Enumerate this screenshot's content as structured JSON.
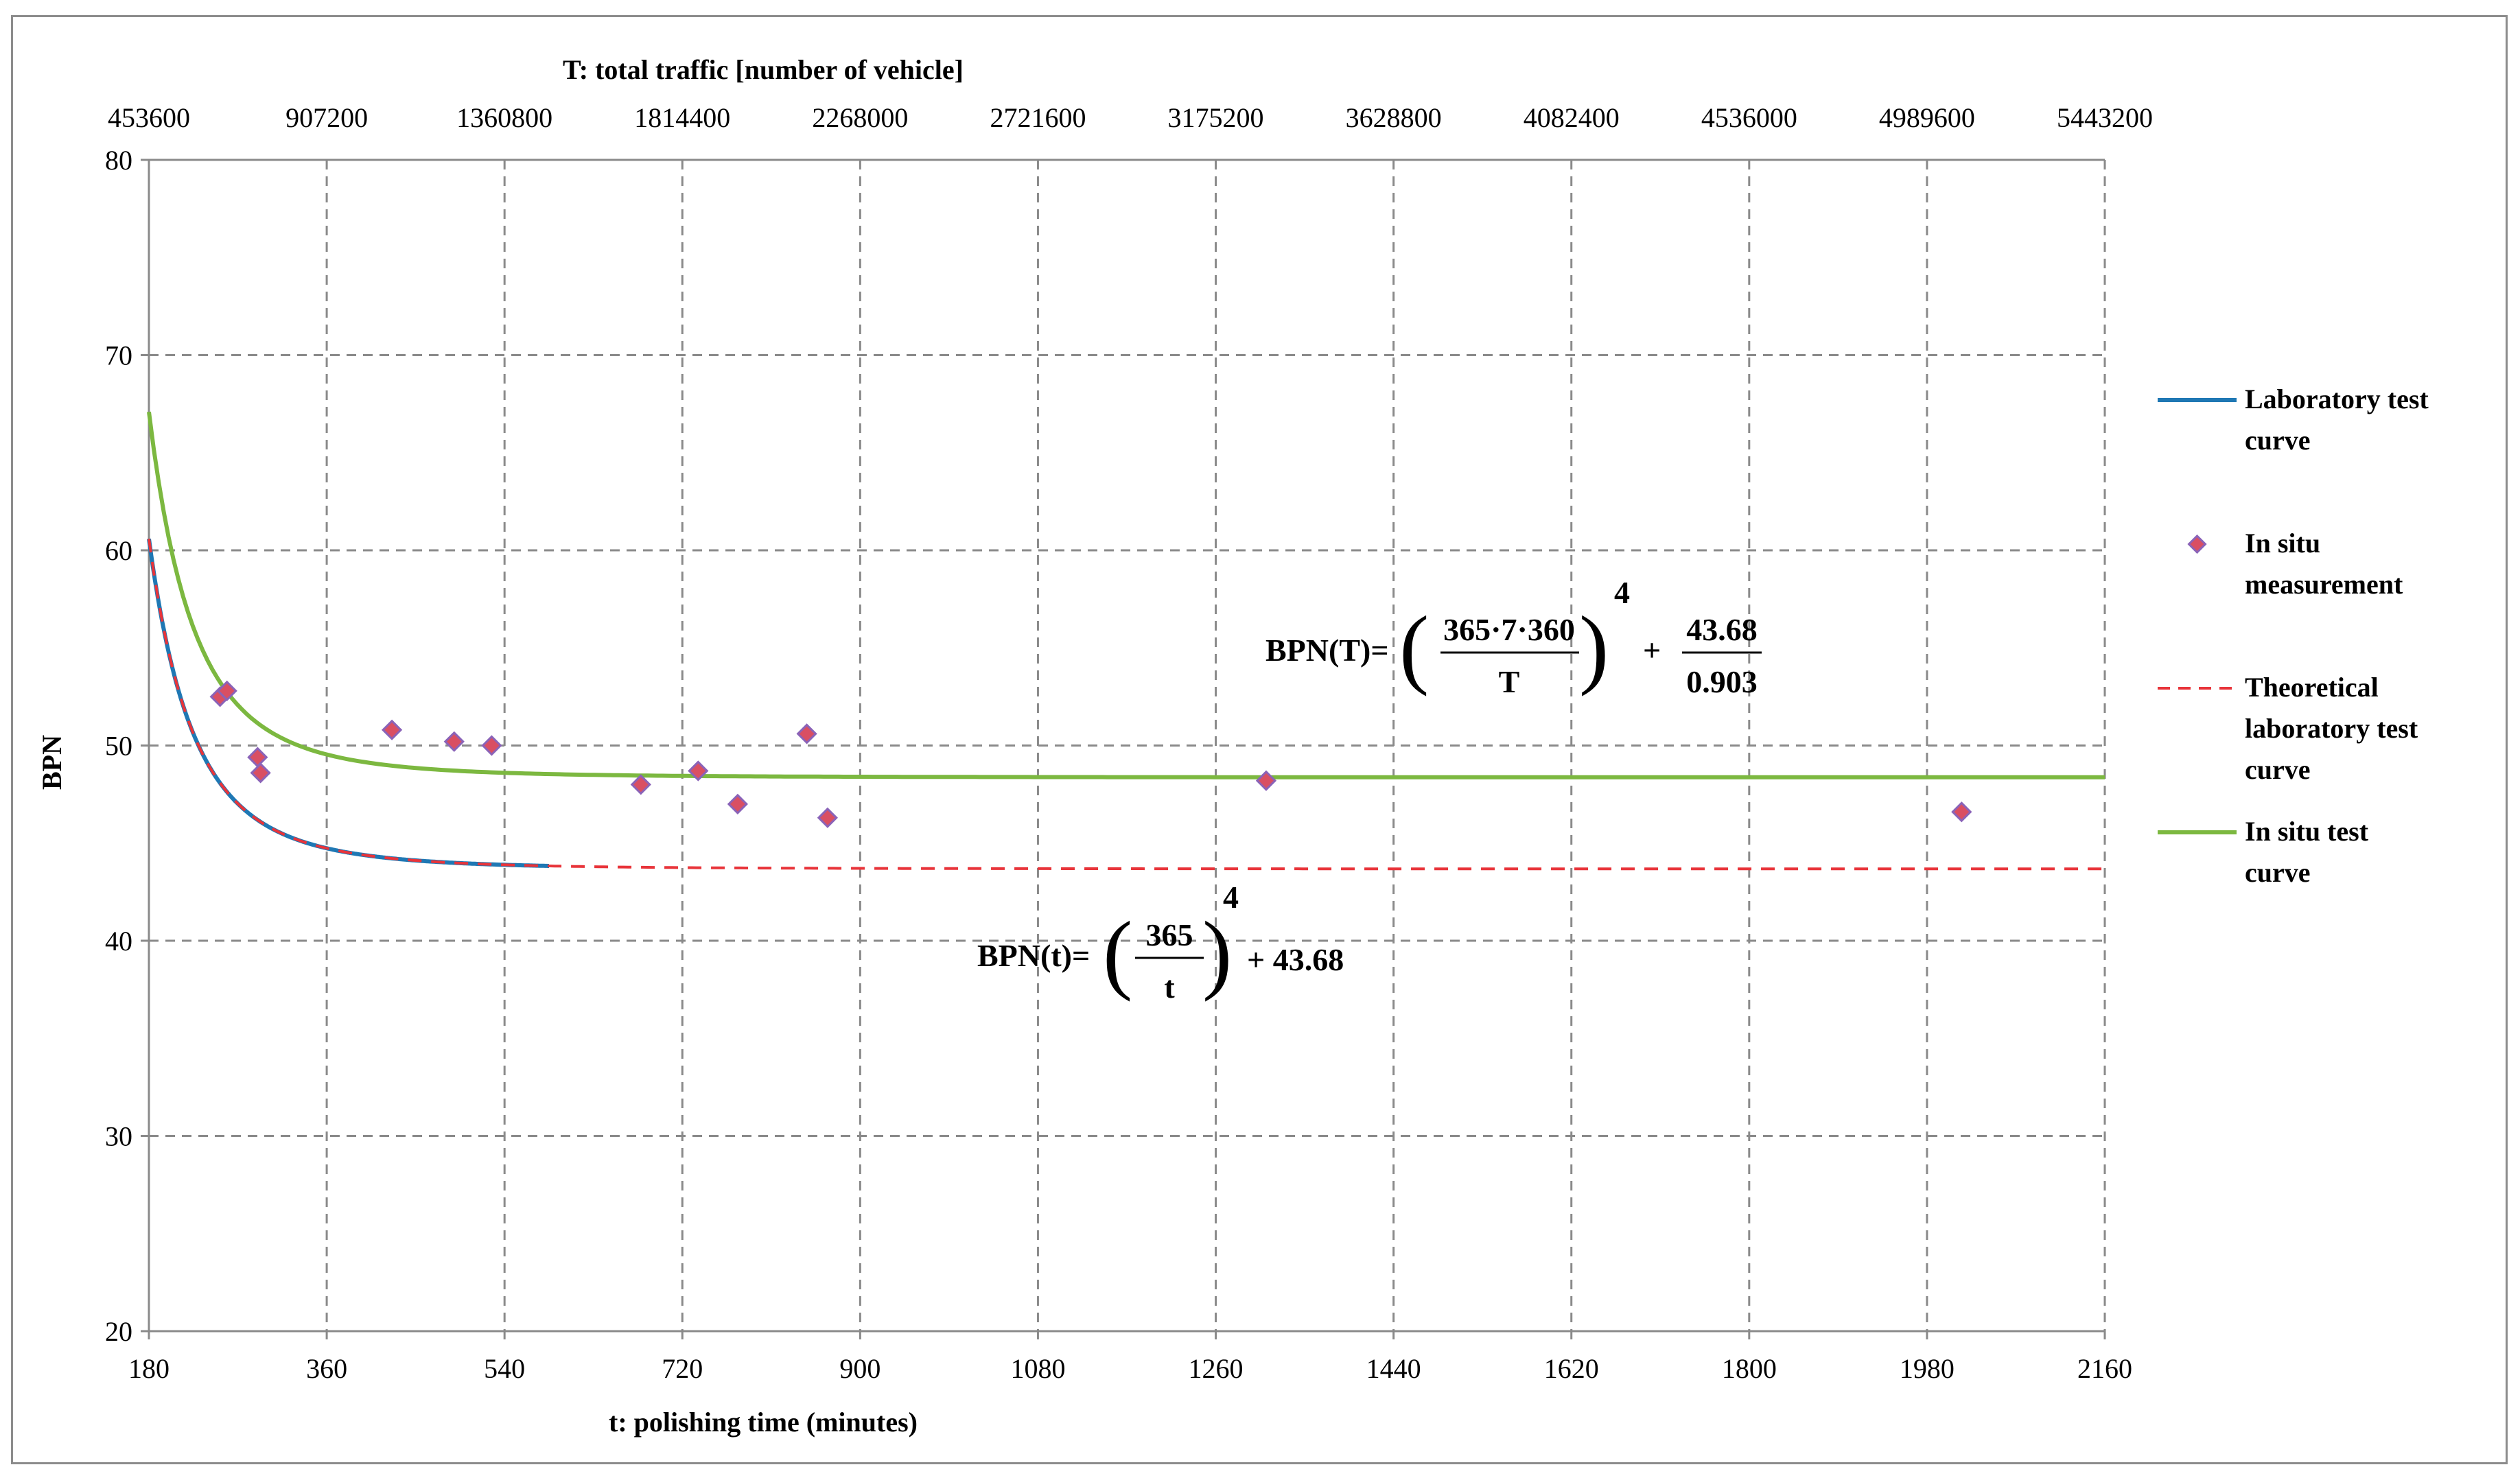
{
  "chart_data": {
    "type": "line",
    "title": "",
    "xlabel": "t: polishing time (minutes)",
    "ylabel": "BPN",
    "x2label": "T: total traffic [number of vehicle]",
    "xlim": [
      180,
      2160
    ],
    "ylim": [
      20,
      80
    ],
    "x2lim": [
      453600,
      5443200
    ],
    "x_ticks": [
      "180",
      "360",
      "540",
      "720",
      "900",
      "1080",
      "1260",
      "1440",
      "1620",
      "1800",
      "1980",
      "2160"
    ],
    "x2_ticks": [
      "453600",
      "907200",
      "1360800",
      "1814400",
      "2268000",
      "2721600",
      "3175200",
      "3628800",
      "4082400",
      "4536000",
      "4989600",
      "5443200"
    ],
    "y_ticks": [
      "20",
      "30",
      "40",
      "50",
      "60",
      "70",
      "80"
    ],
    "grid": true,
    "legend_position": "right",
    "series": [
      {
        "name": "Laboratory test curve",
        "kind": "line",
        "color": "#1f78b4",
        "x_range": [
          180,
          585
        ],
        "formula": "(365/t)^4 + 43.68"
      },
      {
        "name": "In situ measurement",
        "kind": "scatter",
        "color": "#d94f63",
        "edge_color": "#8a63b8",
        "points": [
          [
            252,
            52.5
          ],
          [
            259,
            52.8
          ],
          [
            290,
            49.4
          ],
          [
            293,
            48.6
          ],
          [
            426,
            50.8
          ],
          [
            489,
            50.2
          ],
          [
            527,
            50.0
          ],
          [
            678,
            48.0
          ],
          [
            736,
            48.7
          ],
          [
            776,
            47.0
          ],
          [
            846,
            50.6
          ],
          [
            867,
            46.3
          ],
          [
            1311,
            48.2
          ],
          [
            2015,
            46.6
          ]
        ]
      },
      {
        "name": "Theoretical laboratory test curve",
        "kind": "dashed-line",
        "color": "#e8343a",
        "x_range": [
          180,
          2160
        ],
        "formula": "(365/t)^4 + 43.68"
      },
      {
        "name": "In situ test curve",
        "kind": "line",
        "color": "#7cb840",
        "x_range": [
          180,
          2160
        ],
        "formula": "(365/t)^4/0.903 + 48.37"
      }
    ],
    "legend_lines": [
      [
        "Laboratory test",
        "curve"
      ],
      [
        "In situ",
        "measurement"
      ],
      [
        "Theoretical",
        "laboratory test",
        "curve"
      ],
      [
        "In situ test",
        "curve"
      ]
    ],
    "annotations": {
      "eq_T": {
        "lhs": "BPN(T)=",
        "num": "365·7·360",
        "den": "T",
        "exp": "4",
        "plus": "+",
        "num2": "43.68",
        "den2": "0.903"
      },
      "eq_t": {
        "lhs": "BPN(t)=",
        "num": "365",
        "den": "t",
        "exp": "4",
        "rest": "+ 43.68"
      }
    }
  }
}
